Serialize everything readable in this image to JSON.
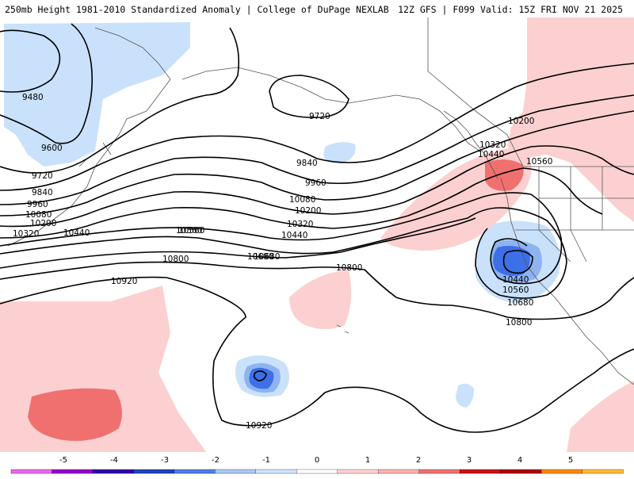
{
  "header": {
    "title_left": "250mb Height 1981-2010 Standardized Anomaly | College of DuPage NEXLAB",
    "title_right": "12Z GFS | F099 Valid: 15Z FRI NOV 21 2025"
  },
  "contours": {
    "labels": [
      "9480",
      "9600",
      "9720",
      "9840",
      "9960",
      "10080",
      "10200",
      "10320",
      "10440",
      "10560",
      "10680",
      "10800",
      "10920",
      "9720",
      "9840",
      "9960",
      "10080",
      "10200",
      "10320",
      "10440",
      "10560",
      "10680",
      "10800",
      "10200",
      "10320",
      "10440",
      "10560",
      "10440",
      "10560",
      "10680",
      "10800",
      "10920",
      "10800"
    ]
  },
  "colorbar": {
    "ticks": [
      "-5",
      "-4",
      "-3",
      "-2",
      "-1",
      "0",
      "1",
      "2",
      "3",
      "4",
      "5"
    ],
    "colors": [
      "#ee66ee",
      "#9900cc",
      "#3300aa",
      "#2244bb",
      "#4d7de8",
      "#a9c9f5",
      "#cfe4fb",
      "#ffffff",
      "#ffd1d1",
      "#ffb1b1",
      "#f07070",
      "#cc1111",
      "#b30000",
      "#ff8800",
      "#ffbb33"
    ]
  },
  "anomaly_colors": {
    "light_blue": "#c9e1fb",
    "mid_blue": "#8fb3f0",
    "deep_blue": "#3d6fe6",
    "light_red": "#fcd0d0",
    "mid_red": "#f07070",
    "land_line": "#555555"
  }
}
